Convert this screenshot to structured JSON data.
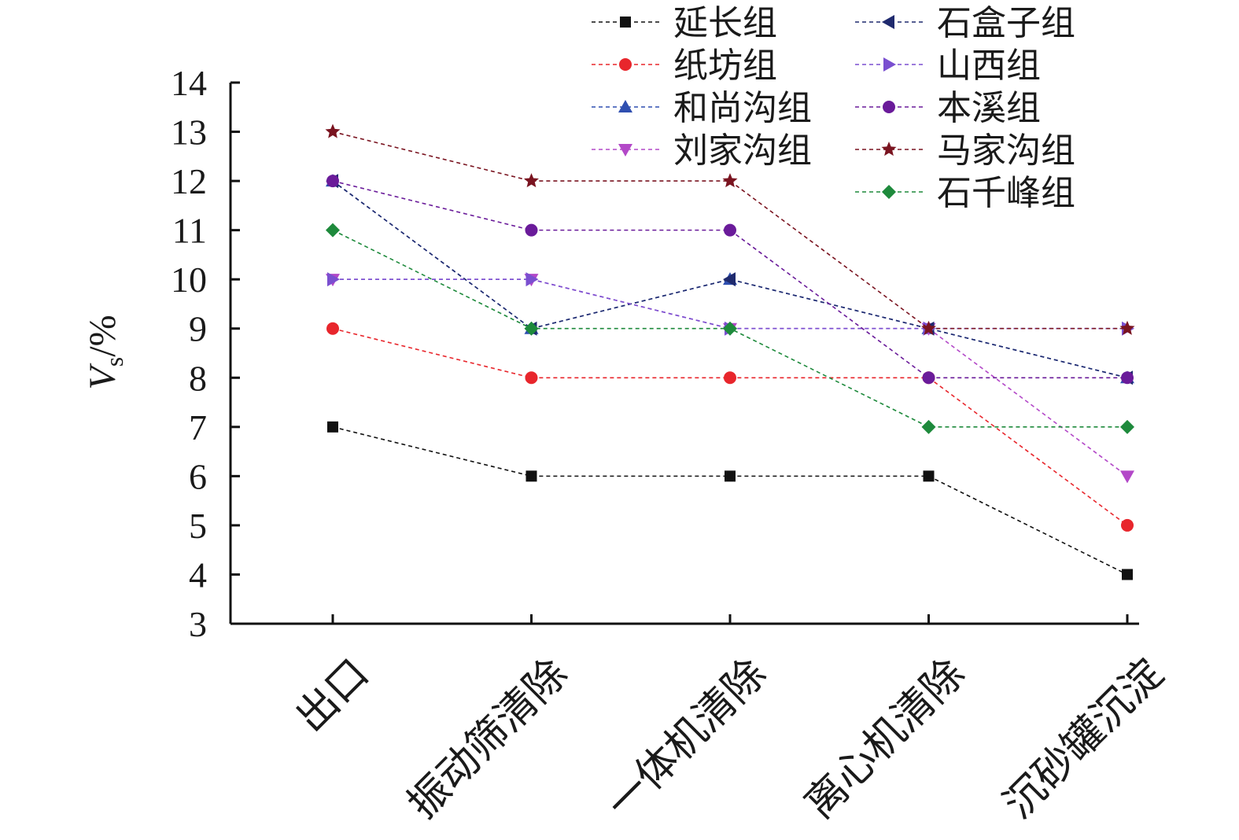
{
  "chart_data": {
    "type": "line",
    "ylabel": {
      "main": "V",
      "sub": "s",
      "unit": "/%"
    },
    "xlabel": "",
    "ylim": [
      3,
      14
    ],
    "yticks": [
      3,
      4,
      5,
      6,
      7,
      8,
      9,
      10,
      11,
      12,
      13,
      14
    ],
    "categories": [
      "出口",
      "振动筛清除",
      "一体机清除",
      "离心机清除",
      "沉砂罐沉淀"
    ],
    "legend_position": "top-right",
    "grid": false,
    "series": [
      {
        "name": "延长组",
        "color": "#111111",
        "marker": "square",
        "values": [
          7,
          6,
          6,
          6,
          4
        ]
      },
      {
        "name": "纸坊组",
        "color": "#e8262c",
        "marker": "circle",
        "values": [
          9,
          8,
          8,
          8,
          5
        ]
      },
      {
        "name": "和尚沟组",
        "color": "#2f4fb0",
        "marker": "triangle-up",
        "values": [
          12,
          9,
          10,
          9,
          8
        ]
      },
      {
        "name": "刘家沟组",
        "color": "#b348c8",
        "marker": "triangle-down",
        "values": [
          10,
          10,
          9,
          9,
          6
        ]
      },
      {
        "name": "石盒子组",
        "color": "#1f2a6e",
        "marker": "triangle-left",
        "values": [
          12,
          9,
          10,
          9,
          8
        ]
      },
      {
        "name": "山西组",
        "color": "#7a4fd0",
        "marker": "triangle-right",
        "values": [
          10,
          10,
          9,
          9,
          9
        ]
      },
      {
        "name": "本溪组",
        "color": "#6a1b9a",
        "marker": "circle",
        "values": [
          12,
          11,
          11,
          8,
          8
        ]
      },
      {
        "name": "马家沟组",
        "color": "#7a1420",
        "marker": "star",
        "values": [
          13,
          12,
          12,
          9,
          9
        ]
      },
      {
        "name": "石千峰组",
        "color": "#1e8a3c",
        "marker": "diamond",
        "values": [
          11,
          9,
          9,
          7,
          7
        ]
      }
    ]
  }
}
